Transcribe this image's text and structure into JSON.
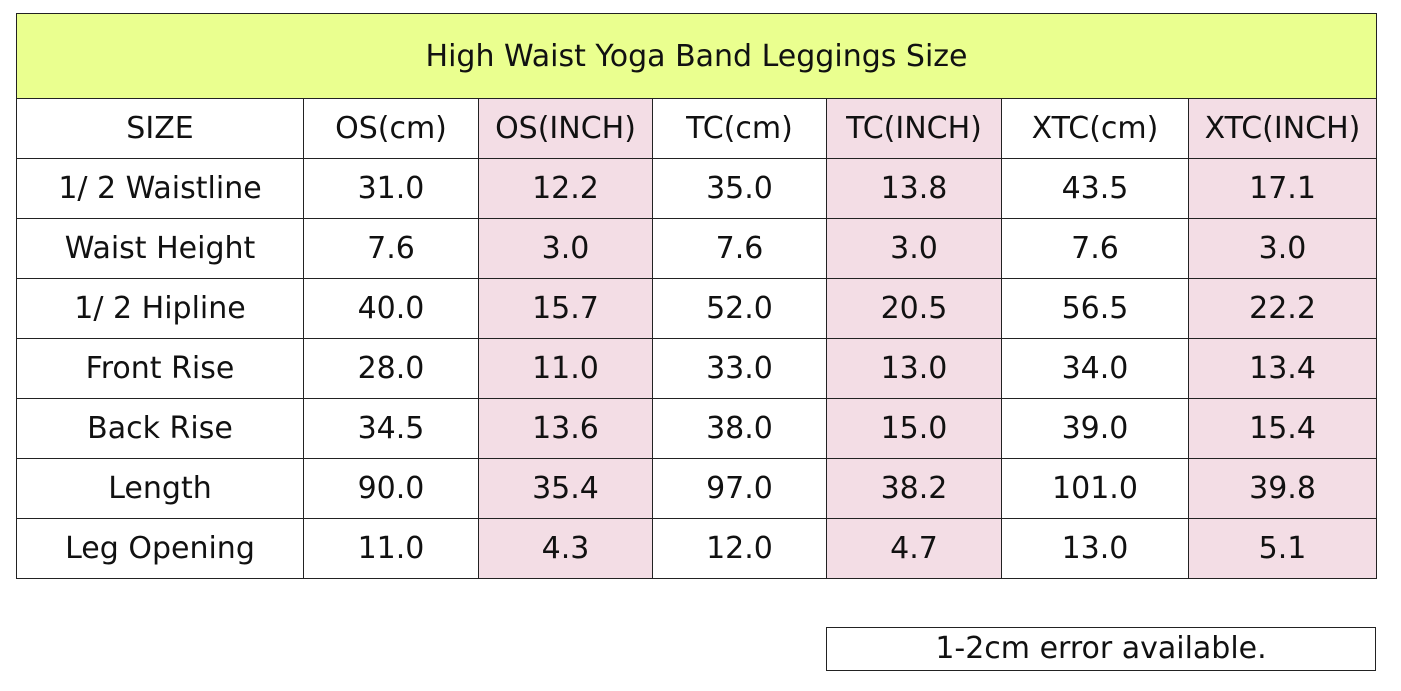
{
  "table": {
    "title": "High Waist Yoga Band Leggings Size",
    "header": [
      "SIZE",
      "OS(cm)",
      "OS(INCH)",
      "TC(cm)",
      "TC(INCH)",
      "XTC(cm)",
      "XTC(INCH)"
    ],
    "rows": [
      [
        "1/ 2 Waistline",
        "31.0",
        "12.2",
        "35.0",
        "13.8",
        "43.5",
        "17.1"
      ],
      [
        "Waist Height",
        "7.6",
        "3.0",
        "7.6",
        "3.0",
        "7.6",
        "3.0"
      ],
      [
        "1/ 2 Hipline",
        "40.0",
        "15.7",
        "52.0",
        "20.5",
        "56.5",
        "22.2"
      ],
      [
        "Front Rise",
        "28.0",
        "11.0",
        "33.0",
        "13.0",
        "34.0",
        "13.4"
      ],
      [
        "Back Rise",
        "34.5",
        "13.6",
        "38.0",
        "15.0",
        "39.0",
        "15.4"
      ],
      [
        "Length",
        "90.0",
        "35.4",
        "97.0",
        "38.2",
        "101.0",
        "39.8"
      ],
      [
        "Leg Opening",
        "11.0",
        "4.3",
        "12.0",
        "4.7",
        "13.0",
        "5.1"
      ]
    ]
  },
  "note": "1-2cm error available."
}
